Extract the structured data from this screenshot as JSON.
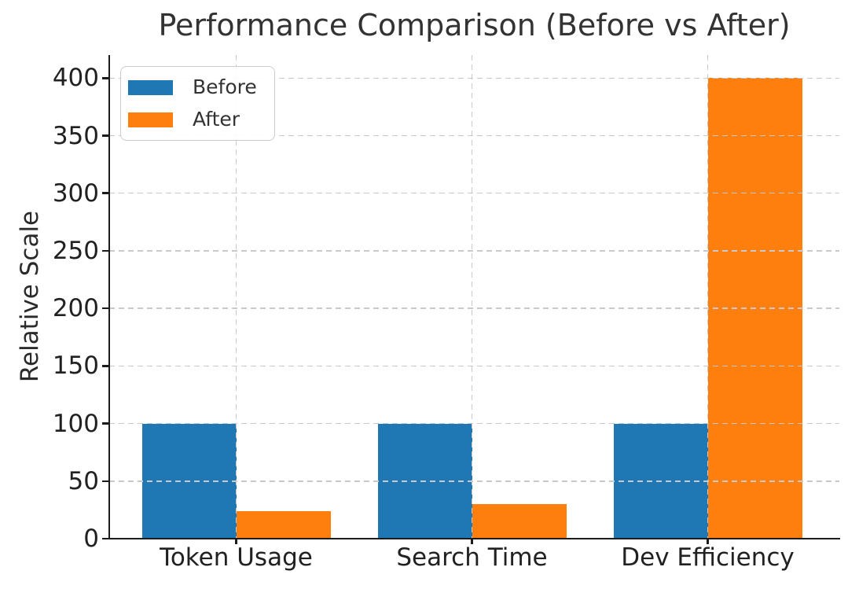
{
  "chart_data": {
    "type": "bar",
    "title": "Performance Comparison (Before vs After)",
    "ylabel": "Relative Scale",
    "xlabel": "",
    "categories": [
      "Token Usage",
      "Search Time",
      "Dev Efficiency"
    ],
    "series": [
      {
        "name": "Before",
        "color": "#1f77b4",
        "values": [
          100,
          100,
          100
        ]
      },
      {
        "name": "After",
        "color": "#ff7f0e",
        "values": [
          24,
          30,
          400
        ]
      }
    ],
    "ylim": [
      0,
      420
    ],
    "yticks": [
      0,
      50,
      100,
      150,
      200,
      250,
      300,
      350,
      400
    ],
    "grid": "dashed gray, horizontal and vertical, drawn above bars",
    "legend_position": "upper left",
    "legend_entries": [
      "Before",
      "After"
    ]
  },
  "colors": {
    "before": "#1f77b4",
    "after": "#ff7f0e",
    "title_text": "#333333",
    "tick_text": "#212121",
    "grid_line": "#c9c9c9",
    "spine": "#1c1c1c",
    "legend_border": "#cccccc",
    "background": "#ffffff"
  }
}
